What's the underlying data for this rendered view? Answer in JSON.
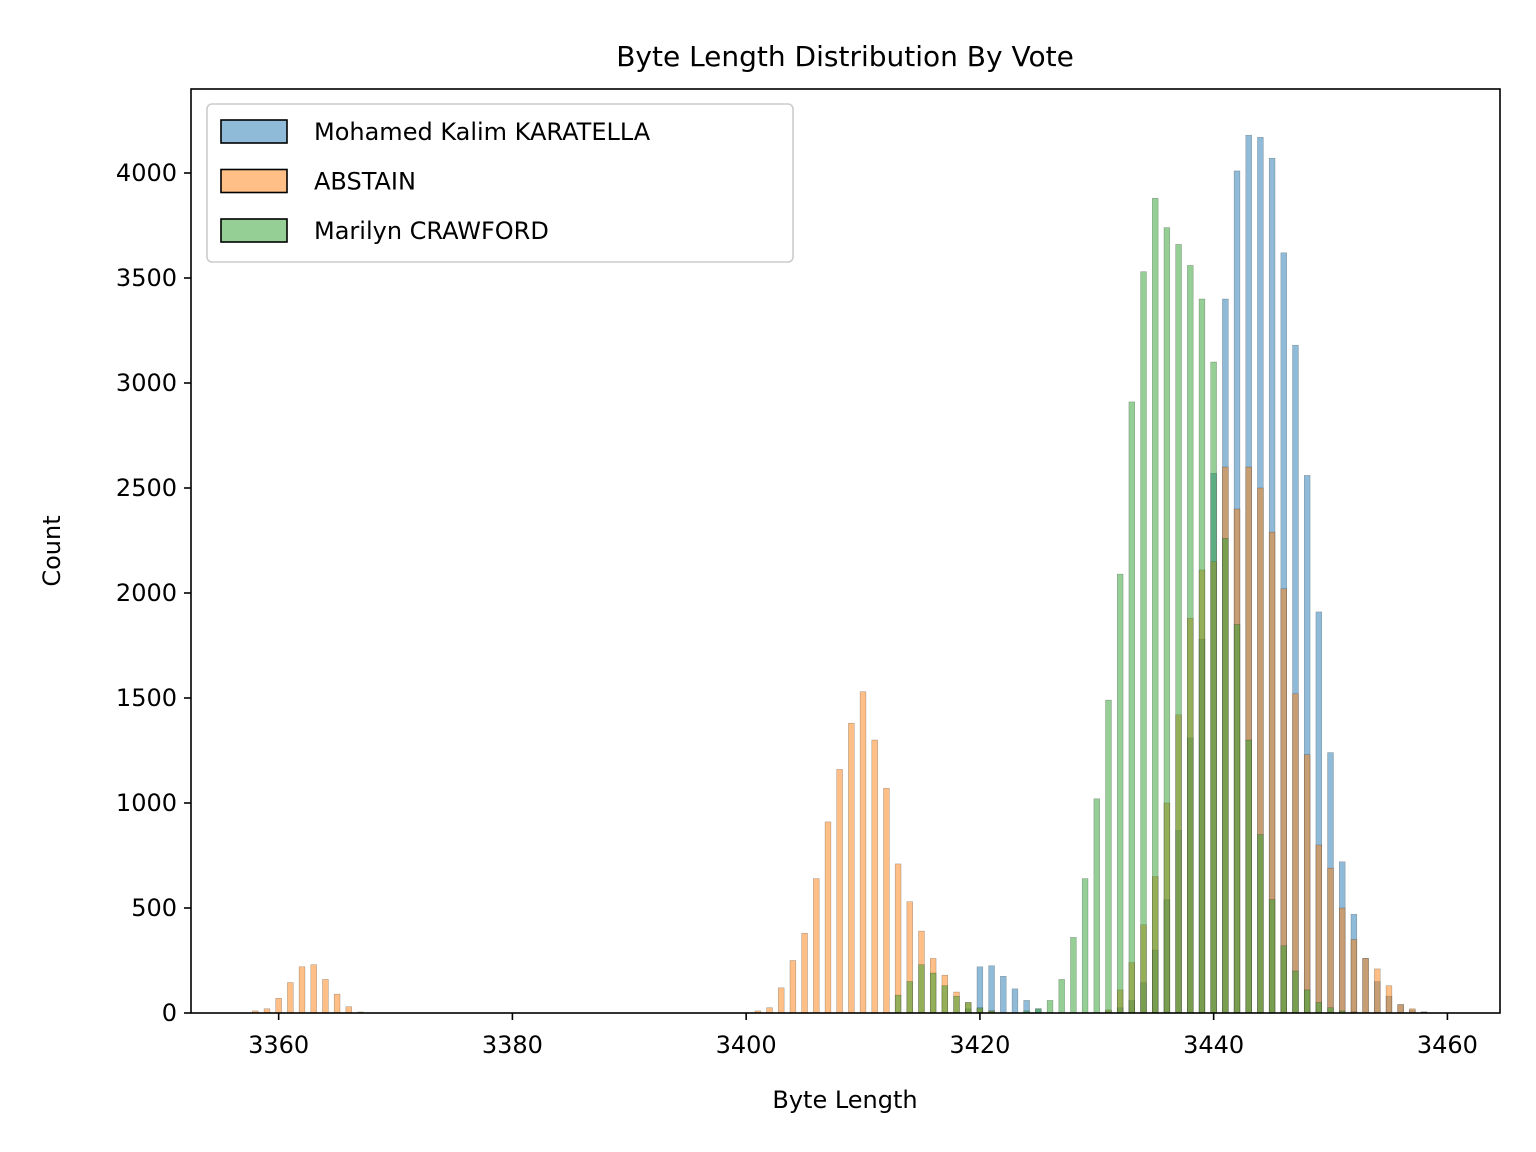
{
  "chart_data": {
    "type": "bar",
    "title": "Byte Length Distribution By Vote",
    "xlabel": "Byte Length",
    "ylabel": "Count",
    "xlim": [
      3352.5,
      3464.5
    ],
    "ylim": [
      0,
      4400
    ],
    "xticks": [
      3360,
      3380,
      3400,
      3420,
      3440,
      3460
    ],
    "yticks": [
      0,
      500,
      1000,
      1500,
      2000,
      2500,
      3000,
      3500,
      4000
    ],
    "grid": false,
    "legend_position": "top-left",
    "bar_alpha": 0.5,
    "series": [
      {
        "name": "Mohamed Kalim KARATELLA",
        "color": "#1f77b4",
        "points": [
          [
            3419,
            20
          ],
          [
            3420,
            220
          ],
          [
            3421,
            225
          ],
          [
            3422,
            175
          ],
          [
            3423,
            115
          ],
          [
            3424,
            60
          ],
          [
            3425,
            20
          ],
          [
            3431,
            10
          ],
          [
            3432,
            25
          ],
          [
            3433,
            60
          ],
          [
            3434,
            145
          ],
          [
            3435,
            300
          ],
          [
            3436,
            540
          ],
          [
            3437,
            870
          ],
          [
            3438,
            1310
          ],
          [
            3439,
            1780
          ],
          [
            3440,
            2570
          ],
          [
            3441,
            3400
          ],
          [
            3442,
            4010
          ],
          [
            3443,
            4180
          ],
          [
            3444,
            4170
          ],
          [
            3445,
            4070
          ],
          [
            3446,
            3620
          ],
          [
            3447,
            3180
          ],
          [
            3448,
            2560
          ],
          [
            3449,
            1910
          ],
          [
            3450,
            1240
          ],
          [
            3451,
            720
          ],
          [
            3452,
            470
          ],
          [
            3453,
            260
          ],
          [
            3454,
            150
          ],
          [
            3455,
            80
          ],
          [
            3456,
            40
          ],
          [
            3457,
            15
          ],
          [
            3458,
            5
          ]
        ]
      },
      {
        "name": "ABSTAIN",
        "color": "#ff7f0e",
        "points": [
          [
            3358,
            10
          ],
          [
            3359,
            20
          ],
          [
            3360,
            70
          ],
          [
            3361,
            145
          ],
          [
            3362,
            220
          ],
          [
            3363,
            230
          ],
          [
            3364,
            160
          ],
          [
            3365,
            90
          ],
          [
            3366,
            30
          ],
          [
            3367,
            5
          ],
          [
            3401,
            10
          ],
          [
            3402,
            25
          ],
          [
            3403,
            120
          ],
          [
            3404,
            250
          ],
          [
            3405,
            380
          ],
          [
            3406,
            640
          ],
          [
            3407,
            910
          ],
          [
            3408,
            1160
          ],
          [
            3409,
            1380
          ],
          [
            3410,
            1530
          ],
          [
            3411,
            1300
          ],
          [
            3412,
            1070
          ],
          [
            3413,
            710
          ],
          [
            3414,
            530
          ],
          [
            3415,
            390
          ],
          [
            3416,
            260
          ],
          [
            3417,
            180
          ],
          [
            3418,
            100
          ],
          [
            3419,
            50
          ],
          [
            3420,
            20
          ],
          [
            3421,
            10
          ],
          [
            3431,
            15
          ],
          [
            3432,
            110
          ],
          [
            3433,
            240
          ],
          [
            3434,
            420
          ],
          [
            3435,
            650
          ],
          [
            3436,
            1000
          ],
          [
            3437,
            1420
          ],
          [
            3438,
            1880
          ],
          [
            3439,
            2110
          ],
          [
            3440,
            2150
          ],
          [
            3441,
            2600
          ],
          [
            3442,
            2400
          ],
          [
            3443,
            2600
          ],
          [
            3444,
            2500
          ],
          [
            3445,
            2290
          ],
          [
            3446,
            2020
          ],
          [
            3447,
            1520
          ],
          [
            3448,
            1230
          ],
          [
            3449,
            800
          ],
          [
            3450,
            690
          ],
          [
            3451,
            500
          ],
          [
            3452,
            350
          ],
          [
            3453,
            260
          ],
          [
            3454,
            210
          ],
          [
            3455,
            130
          ],
          [
            3456,
            40
          ],
          [
            3457,
            20
          ],
          [
            3458,
            5
          ]
        ]
      },
      {
        "name": "Marilyn CRAWFORD",
        "color": "#2ca02c",
        "points": [
          [
            3413,
            85
          ],
          [
            3414,
            150
          ],
          [
            3415,
            230
          ],
          [
            3416,
            190
          ],
          [
            3417,
            130
          ],
          [
            3418,
            80
          ],
          [
            3419,
            50
          ],
          [
            3420,
            25
          ],
          [
            3421,
            10
          ],
          [
            3424,
            10
          ],
          [
            3425,
            20
          ],
          [
            3426,
            60
          ],
          [
            3427,
            160
          ],
          [
            3428,
            360
          ],
          [
            3429,
            640
          ],
          [
            3430,
            1020
          ],
          [
            3431,
            1490
          ],
          [
            3432,
            2090
          ],
          [
            3433,
            2910
          ],
          [
            3434,
            3530
          ],
          [
            3435,
            3880
          ],
          [
            3436,
            3740
          ],
          [
            3437,
            3660
          ],
          [
            3438,
            3560
          ],
          [
            3439,
            3400
          ],
          [
            3440,
            3100
          ],
          [
            3441,
            2260
          ],
          [
            3442,
            1850
          ],
          [
            3443,
            1300
          ],
          [
            3444,
            850
          ],
          [
            3445,
            540
          ],
          [
            3446,
            320
          ],
          [
            3447,
            200
          ],
          [
            3448,
            110
          ],
          [
            3449,
            50
          ],
          [
            3450,
            25
          ],
          [
            3451,
            10
          ],
          [
            3452,
            5
          ]
        ]
      }
    ]
  }
}
